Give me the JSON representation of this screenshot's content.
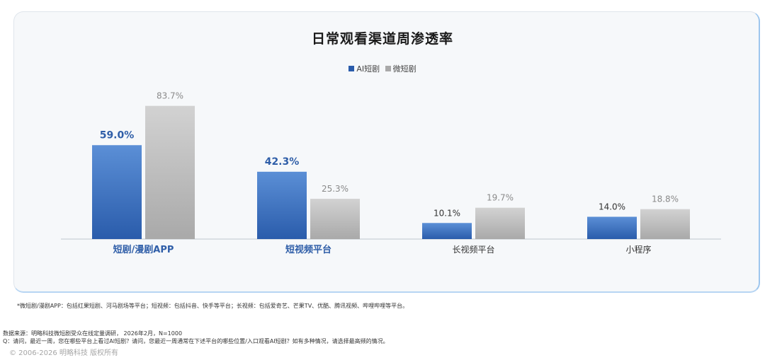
{
  "chart_data": {
    "type": "bar",
    "title": "日常观看渠道周渗透率",
    "categories": [
      "短剧/漫剧APP",
      "短视频平台",
      "长视频平台",
      "小程序"
    ],
    "series": [
      {
        "name": "AI短剧",
        "values": [
          59.0,
          42.3,
          10.1,
          14.0
        ],
        "labels": [
          "59.0%",
          "42.3%",
          "10.1%",
          "14.0%"
        ]
      },
      {
        "name": "微短剧",
        "values": [
          83.7,
          25.3,
          19.7,
          18.8
        ],
        "labels": [
          "83.7%",
          "25.3%",
          "19.7%",
          "18.8%"
        ]
      }
    ],
    "highlighted_categories": [
      0,
      1
    ],
    "ylim": [
      0,
      100
    ],
    "legend_position": "top-center",
    "grid": false
  },
  "colors": {
    "ai_top": "#5b8fd6",
    "ai_bottom": "#2a5cab",
    "micro_top": "#d2d2d2",
    "micro_bottom": "#a9a9a9",
    "highlight_label": "#2f5ea8",
    "normal_label": "#333333",
    "micro_label": "#8a8a8a"
  },
  "footnote": "*微短剧/漫剧APP：包括红果短剧、河马剧场等平台；短视频：包括抖音、快手等平台；长视频：包括爱奇艺、芒果TV、优酷、腾讯视频、哔哩哔哩等平台。",
  "source_line1": "数据来源：明略科技微短剧受众在线定量调研， 2026年2月，N=1000",
  "source_line2": "Q：请问，最近一周，您在哪些平台上看过AI短剧？请问，您最近一周通常在下述平台的哪些位置/入口观看AI短剧？如有多种情况，请选择最高频的情况。",
  "copyright": "© 2006-2026 明略科技 版权所有"
}
